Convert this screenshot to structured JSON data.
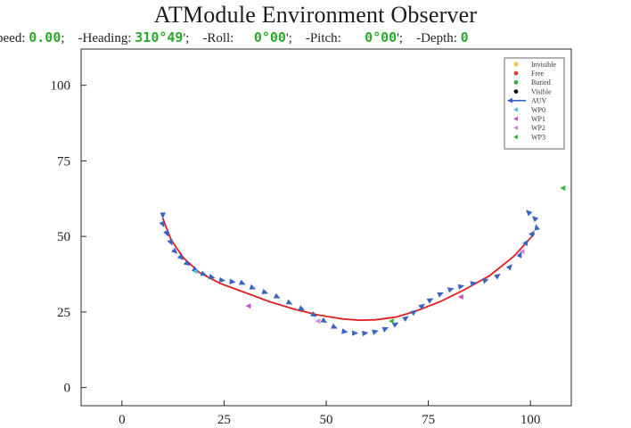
{
  "window": {
    "title": "ATModule Environment Observer"
  },
  "status_bar": {
    "speed_label": "peed:",
    "speed_value": "0.00",
    "heading_label": "-Heading:",
    "heading_value": "310°49",
    "roll_label": "-Roll:",
    "roll_value": "0°00",
    "pitch_label": "-Pitch:",
    "pitch_value": "0°00",
    "depth_label": "-Depth:",
    "depth_value": "0"
  },
  "colors": {
    "path_marker": "#3a64c2",
    "fitted_curve": "#e02020",
    "wp0": "#4fb7e0",
    "wp1": "#c84fc8",
    "wp2": "#d08ad0",
    "wp3": "#39b539"
  },
  "chart_data": {
    "type": "scatter",
    "xlim": [
      -10,
      110
    ],
    "ylim": [
      -6,
      112
    ],
    "x_ticks": [
      0,
      25,
      50,
      75,
      100
    ],
    "y_ticks": [
      0,
      25,
      50,
      75,
      100
    ],
    "legend_position": "top-right",
    "legend": [
      {
        "label": "Invisible",
        "color": "#e8c63a",
        "icon": "dot-icon"
      },
      {
        "label": "Free",
        "color": "#e04040",
        "icon": "dot-icon"
      },
      {
        "label": "Buried",
        "color": "#3aa83a",
        "icon": "dot-icon"
      },
      {
        "label": "Visible",
        "color": "#111111",
        "icon": "dot-icon"
      },
      {
        "label": "AUV",
        "color": "#3a64c2",
        "icon": "arrow-line-icon"
      },
      {
        "label": "WP0",
        "color": "#4fb7e0",
        "icon": "triangle-icon"
      },
      {
        "label": "WP1",
        "color": "#c84fc8",
        "icon": "triangle-icon"
      },
      {
        "label": "WP2",
        "color": "#d08ad0",
        "icon": "triangle-icon"
      },
      {
        "label": "WP3",
        "color": "#39b539",
        "icon": "triangle-icon"
      }
    ],
    "auv_path": [
      [
        10,
        57
      ],
      [
        10,
        54
      ],
      [
        11,
        51
      ],
      [
        12,
        48
      ],
      [
        13,
        45
      ],
      [
        14.5,
        43
      ],
      [
        16,
        41
      ],
      [
        18,
        39
      ],
      [
        20,
        37.5
      ],
      [
        22,
        36.5
      ],
      [
        24.5,
        35.5
      ],
      [
        27,
        35
      ],
      [
        29.5,
        34.5
      ],
      [
        32,
        33
      ],
      [
        35,
        31.5
      ],
      [
        38,
        30
      ],
      [
        41,
        28
      ],
      [
        44,
        26
      ],
      [
        47,
        24
      ],
      [
        49.5,
        22
      ],
      [
        52,
        20
      ],
      [
        54.5,
        18.5
      ],
      [
        57,
        18
      ],
      [
        59.5,
        18
      ],
      [
        62,
        18.5
      ],
      [
        64.5,
        19.5
      ],
      [
        67,
        21
      ],
      [
        69.5,
        23
      ],
      [
        71.5,
        25
      ],
      [
        73.5,
        27
      ],
      [
        75.5,
        29
      ],
      [
        78,
        31
      ],
      [
        80.5,
        32.5
      ],
      [
        83,
        33.5
      ],
      [
        86,
        34.5
      ],
      [
        89,
        35.5
      ],
      [
        92,
        37
      ],
      [
        95,
        40
      ],
      [
        97.5,
        44
      ],
      [
        99,
        48
      ],
      [
        100.5,
        51
      ],
      [
        101.5,
        53
      ],
      [
        101,
        56
      ],
      [
        99.5,
        58
      ]
    ],
    "fitted_curve": [
      [
        10,
        56
      ],
      [
        12,
        49
      ],
      [
        15,
        43
      ],
      [
        19,
        38
      ],
      [
        24,
        34.5
      ],
      [
        30,
        31.5
      ],
      [
        36,
        28.5
      ],
      [
        42,
        26
      ],
      [
        48,
        24
      ],
      [
        54,
        22.7
      ],
      [
        58,
        22.3
      ],
      [
        62,
        22.4
      ],
      [
        67,
        23.3
      ],
      [
        72,
        25.3
      ],
      [
        78,
        28.5
      ],
      [
        84,
        32.5
      ],
      [
        90,
        37
      ],
      [
        96,
        43.5
      ],
      [
        101,
        51
      ]
    ],
    "waypoints": [
      {
        "name": "WP0",
        "x": 18,
        "y": 38.5
      },
      {
        "name": "WP1",
        "x": 31,
        "y": 27
      },
      {
        "name": "WP1",
        "x": 83,
        "y": 30
      },
      {
        "name": "WP2",
        "x": 48,
        "y": 22
      },
      {
        "name": "WP2",
        "x": 98,
        "y": 45
      },
      {
        "name": "WP3",
        "x": 66,
        "y": 22
      },
      {
        "name": "WP3",
        "x": 108,
        "y": 66
      }
    ]
  }
}
